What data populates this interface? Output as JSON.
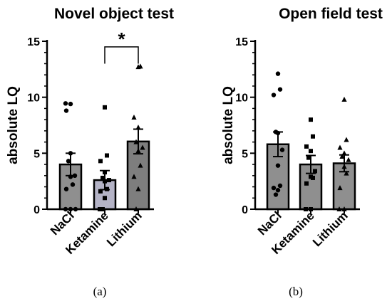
{
  "chart_data": [
    {
      "type": "bar",
      "title": "Novel object test",
      "ylabel": "absolute LQ",
      "xlabel": "",
      "ylim": [
        0,
        15
      ],
      "yticks": [
        "0",
        "5",
        "10",
        "15"
      ],
      "categories": [
        "NaCl",
        "Ketamine",
        "Lithium"
      ],
      "bar_colors": [
        "#8f8f8f",
        "#b4b3c6",
        "#7e7e7e"
      ],
      "values": [
        4.0,
        2.6,
        6.05
      ],
      "errors": [
        1.0,
        0.85,
        1.1
      ],
      "points": [
        [
          9.4,
          9.45,
          8.8,
          5.0,
          4.3,
          3.0,
          2.9,
          2.2,
          1.8,
          0.0,
          0.0,
          0.0
        ],
        [
          9.1,
          4.8,
          4.3,
          3.3,
          2.8,
          2.6,
          2.5,
          1.8,
          1.6,
          1.0,
          0.0,
          0.0
        ],
        [
          12.7,
          12.75,
          8.2,
          7.3,
          6.0,
          5.5,
          5.2,
          3.9,
          2.9,
          1.8,
          0.0
        ]
      ],
      "point_markers": [
        "circle",
        "square",
        "triangle"
      ],
      "comparisons": [
        {
          "from": "Ketamine",
          "to": "Lithium",
          "label": "*"
        }
      ],
      "caption": "(a)"
    },
    {
      "type": "bar",
      "title": "Open field test",
      "ylabel": "absolute LQ",
      "xlabel": "",
      "ylim": [
        0,
        15
      ],
      "yticks": [
        "0",
        "5",
        "10",
        "15"
      ],
      "categories": [
        "NaCl",
        "Ketamine",
        "Lithium"
      ],
      "bar_colors": [
        "#8f8f8f",
        "#8f8f8f",
        "#8f8f8f"
      ],
      "values": [
        5.8,
        4.0,
        4.1
      ],
      "errors": [
        1.1,
        0.8,
        0.75
      ],
      "points": [
        [
          12.1,
          10.7,
          10.2,
          6.8,
          6.9,
          5.3,
          3.9,
          2.1,
          1.9,
          1.7,
          1.3
        ],
        [
          8.0,
          6.5,
          5.6,
          5.2,
          4.6,
          3.4,
          2.9,
          2.8,
          2.3,
          0.0,
          0.0
        ],
        [
          9.8,
          6.2,
          5.5,
          5.0,
          4.7,
          4.4,
          3.8,
          3.2,
          1.9,
          0.0,
          0.0
        ]
      ],
      "point_markers": [
        "circle",
        "square",
        "triangle"
      ],
      "comparisons": [],
      "caption": "(b)"
    }
  ]
}
